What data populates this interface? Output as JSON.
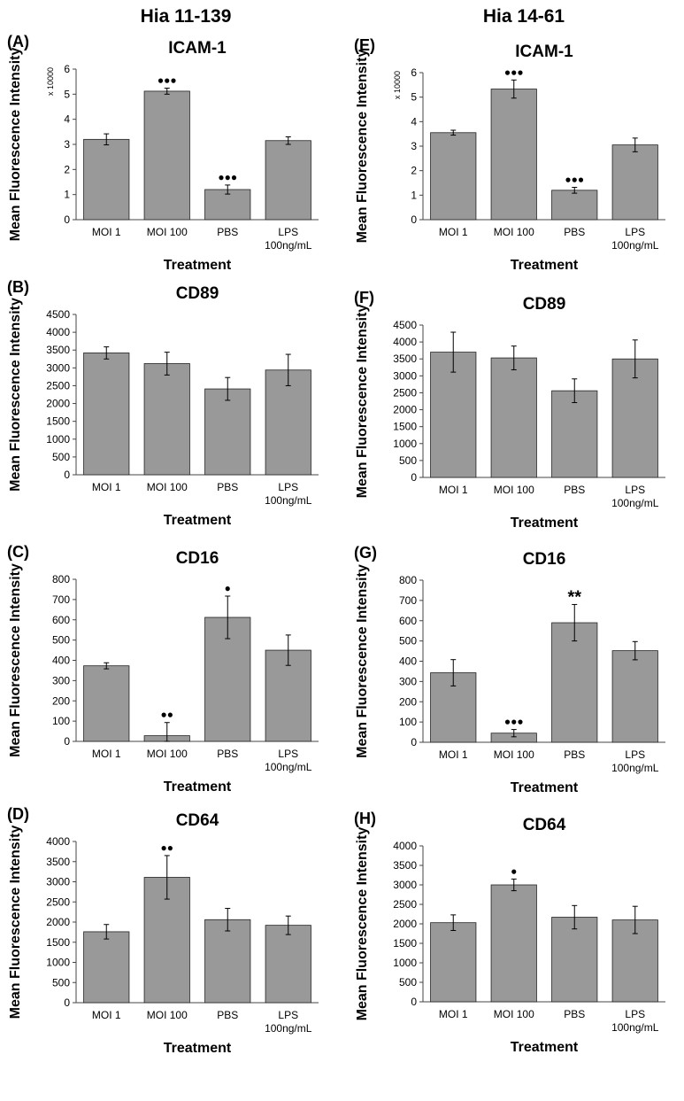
{
  "column_titles": [
    "Hia 11-139",
    "Hia 14-61"
  ],
  "chart_data": [
    {
      "type": "bar",
      "panel": "(A)",
      "title": "ICAM-1",
      "multiplier": "x 10000",
      "categories": [
        "MOI 1",
        "MOI 100",
        "PBS",
        "LPS 100ng/mL"
      ],
      "values": [
        3.2,
        5.12,
        1.2,
        3.15
      ],
      "errors": [
        0.22,
        0.12,
        0.18,
        0.15
      ],
      "significance": [
        "",
        "●●●",
        "●●●",
        ""
      ],
      "xlabel": "Treatment",
      "ylabel": "Mean Fluorescence Intensity",
      "ylim": [
        0,
        6
      ],
      "yticks": [
        0,
        1,
        2,
        3,
        4,
        5,
        6
      ]
    },
    {
      "type": "bar",
      "panel": "(B)",
      "title": "CD89",
      "multiplier": "",
      "categories": [
        "MOI 1",
        "MOI 100",
        "PBS",
        "LPS 100ng/mL"
      ],
      "values": [
        3420,
        3120,
        2410,
        2940
      ],
      "errors": [
        170,
        320,
        320,
        440
      ],
      "significance": [
        "",
        "",
        "",
        ""
      ],
      "xlabel": "Treatment",
      "ylabel": "Mean Fluorescence Intensity",
      "ylim": [
        0,
        4500
      ],
      "yticks": [
        0,
        500,
        1000,
        1500,
        2000,
        2500,
        3000,
        3500,
        4000,
        4500
      ]
    },
    {
      "type": "bar",
      "panel": "(C)",
      "title": "CD16",
      "multiplier": "",
      "categories": [
        "MOI 1",
        "MOI 100",
        "PBS",
        "LPS 100ng/mL"
      ],
      "values": [
        373,
        28,
        612,
        450
      ],
      "errors": [
        15,
        65,
        105,
        75
      ],
      "significance": [
        "",
        "●●",
        "●",
        ""
      ],
      "xlabel": "Treatment",
      "ylabel": "Mean Fluorescence Intensity",
      "ylim": [
        0,
        800
      ],
      "yticks": [
        0,
        100,
        200,
        300,
        400,
        500,
        600,
        700,
        800
      ]
    },
    {
      "type": "bar",
      "panel": "(D)",
      "title": "CD64",
      "multiplier": "",
      "categories": [
        "MOI 1",
        "MOI 100",
        "PBS",
        "LPS 100ng/mL"
      ],
      "values": [
        1760,
        3110,
        2060,
        1920
      ],
      "errors": [
        180,
        540,
        280,
        230
      ],
      "significance": [
        "",
        "●●",
        "",
        ""
      ],
      "xlabel": "Treatment",
      "ylabel": "Mean Fluorescence Intensity",
      "ylim": [
        0,
        4000
      ],
      "yticks": [
        0,
        500,
        1000,
        1500,
        2000,
        2500,
        3000,
        3500,
        4000
      ]
    },
    {
      "type": "bar",
      "panel": "(E)",
      "title": "ICAM-1",
      "multiplier": "x 10000",
      "categories": [
        "MOI 1",
        "MOI 100",
        "PBS",
        "LPS 100ng/mL"
      ],
      "values": [
        3.55,
        5.33,
        1.2,
        3.05
      ],
      "errors": [
        0.1,
        0.37,
        0.12,
        0.28
      ],
      "significance": [
        "",
        "●●●",
        "●●●",
        ""
      ],
      "xlabel": "Treatment",
      "ylabel": "Mean Fluorescence Intensity",
      "ylim": [
        0,
        6
      ],
      "yticks": [
        0,
        1,
        2,
        3,
        4,
        5,
        6
      ]
    },
    {
      "type": "bar",
      "panel": "(F)",
      "title": "CD89",
      "multiplier": "",
      "categories": [
        "MOI 1",
        "MOI 100",
        "PBS",
        "LPS 100ng/mL"
      ],
      "values": [
        3700,
        3530,
        2560,
        3500
      ],
      "errors": [
        590,
        350,
        350,
        560
      ],
      "significance": [
        "",
        "",
        "",
        ""
      ],
      "xlabel": "Treatment",
      "ylabel": "Mean Fluorescence Intensity",
      "ylim": [
        0,
        4500
      ],
      "yticks": [
        0,
        500,
        1000,
        1500,
        2000,
        2500,
        3000,
        3500,
        4000,
        4500
      ]
    },
    {
      "type": "bar",
      "panel": "(G)",
      "title": "CD16",
      "multiplier": "",
      "categories": [
        "MOI 1",
        "MOI 100",
        "PBS",
        "LPS 100ng/mL"
      ],
      "values": [
        343,
        45,
        590,
        452
      ],
      "errors": [
        65,
        18,
        90,
        45
      ],
      "significance": [
        "",
        "●●●",
        "**",
        ""
      ],
      "xlabel": "Treatment",
      "ylabel": "Mean Fluorescence Intensity",
      "ylim": [
        0,
        800
      ],
      "yticks": [
        0,
        100,
        200,
        300,
        400,
        500,
        600,
        700,
        800
      ]
    },
    {
      "type": "bar",
      "panel": "(H)",
      "title": "CD64",
      "multiplier": "",
      "categories": [
        "MOI 1",
        "MOI 100",
        "PBS",
        "LPS 100ng/mL"
      ],
      "values": [
        2030,
        3000,
        2170,
        2100
      ],
      "errors": [
        200,
        150,
        300,
        350
      ],
      "significance": [
        "",
        "●",
        "",
        ""
      ],
      "xlabel": "Treatment",
      "ylabel": "Mean Fluorescence Intensity",
      "ylim": [
        0,
        4000
      ],
      "yticks": [
        0,
        500,
        1000,
        1500,
        2000,
        2500,
        3000,
        3500,
        4000
      ]
    }
  ],
  "style": {
    "bar_color": "#999999",
    "bar_stroke": "#222222",
    "axis_color": "#444444"
  }
}
